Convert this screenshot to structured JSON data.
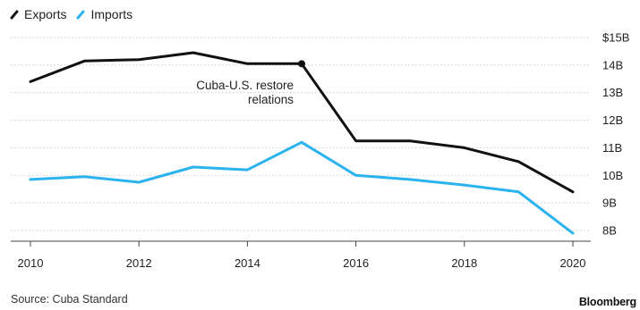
{
  "legend": {
    "exports_label": "Exports",
    "imports_label": "Imports"
  },
  "source": "Source: Cuba Standard",
  "brand": "Bloomberg",
  "chart_data": {
    "type": "line",
    "title": "",
    "xlabel": "",
    "ylabel": "",
    "x": [
      2010,
      2011,
      2012,
      2013,
      2014,
      2015,
      2016,
      2017,
      2018,
      2019,
      2020
    ],
    "series": [
      {
        "name": "Exports",
        "color": "#111111",
        "values": [
          13.4,
          14.15,
          14.2,
          14.45,
          14.05,
          14.05,
          11.25,
          11.25,
          11.0,
          10.5,
          9.4
        ]
      },
      {
        "name": "Imports",
        "color": "#2bb3f0",
        "values": [
          9.85,
          9.95,
          9.75,
          10.3,
          10.2,
          11.2,
          10.0,
          9.85,
          9.65,
          9.4,
          7.9
        ]
      }
    ],
    "xlim": [
      2010,
      2020
    ],
    "ylim": [
      8,
      15
    ],
    "x_ticks": [
      "2010",
      "2012",
      "2014",
      "2016",
      "2018",
      "2020"
    ],
    "y_ticks": [
      "$15B",
      "14B",
      "13B",
      "12B",
      "11B",
      "10B",
      "9B",
      "8B"
    ],
    "y_tick_values": [
      15,
      14,
      13,
      12,
      11,
      10,
      9,
      8
    ],
    "grid": "horizontal-dotted",
    "legend_position": "top-left",
    "annotation": {
      "text_lines": [
        "Cuba-U.S. restore",
        "relations"
      ],
      "x": 2015,
      "y": 14.05,
      "series": "Exports"
    }
  }
}
